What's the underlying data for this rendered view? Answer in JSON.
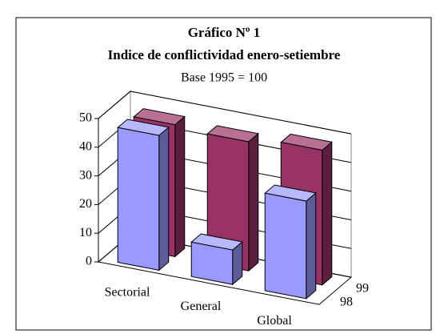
{
  "chart_data": {
    "type": "bar3d",
    "title": "Gráfico Nº 1",
    "subtitle": "Indice de conflictividad enero-setiembre",
    "note": "Base 1995 = 100",
    "categories": [
      "Sectorial",
      "General",
      "Global"
    ],
    "series": [
      {
        "name": "98",
        "color": "#9999ff",
        "values": [
          47,
          12,
          34
        ]
      },
      {
        "name": "99",
        "color": "#993366",
        "values": [
          46,
          45,
          47
        ]
      }
    ],
    "ylim": [
      0,
      50
    ],
    "yticks": [
      0,
      10,
      20,
      30,
      40,
      50
    ],
    "grid": true
  }
}
